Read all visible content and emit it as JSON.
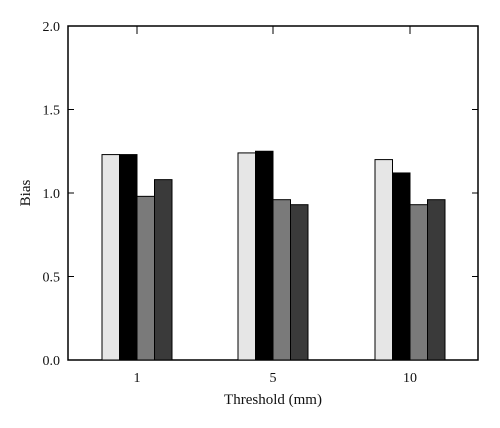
{
  "chart_data": {
    "type": "bar",
    "title": "",
    "xlabel": "Threshold (mm)",
    "ylabel": "Bias",
    "ylim": [
      0,
      2.0
    ],
    "yticks": [
      "0.0",
      "0.5",
      "1.0",
      "1.5",
      "2.0"
    ],
    "categories": [
      "1",
      "5",
      "10"
    ],
    "grid": false,
    "legend": "none",
    "series": [
      {
        "values": [
          1.23,
          1.24,
          1.2
        ],
        "color": "#e6e6e6"
      },
      {
        "values": [
          1.23,
          1.25,
          1.12
        ],
        "color": "#000000"
      },
      {
        "values": [
          0.98,
          0.96,
          0.93
        ],
        "color": "#7a7a7a"
      },
      {
        "values": [
          1.08,
          0.93,
          0.96
        ],
        "color": "#3a3a3a"
      }
    ]
  }
}
